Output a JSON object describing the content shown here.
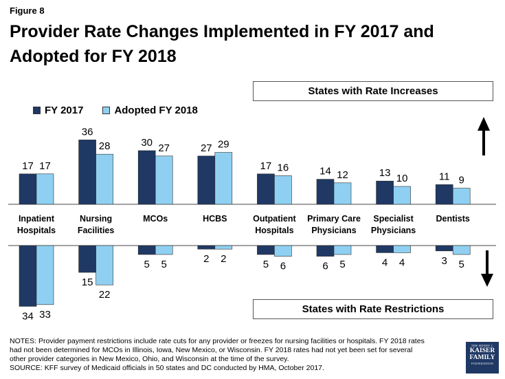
{
  "figure_label": "Figure 8",
  "title": "Provider Rate Changes Implemented in FY 2017 and Adopted for FY 2018",
  "increase_box": "States with Rate Increases",
  "restriction_box": "States with Rate Restrictions",
  "chart_data": {
    "type": "bar",
    "categories": [
      "Inpatient Hospitals",
      "Nursing Facilities",
      "MCOs",
      "HCBS",
      "Outpatient Hospitals",
      "Primary Care Physicians",
      "Specialist Physicians",
      "Dentists"
    ],
    "series": [
      {
        "name": "FY 2017",
        "color": "#1f3864",
        "increases": [
          17,
          36,
          30,
          27,
          17,
          14,
          13,
          11
        ],
        "restrictions": [
          34,
          15,
          5,
          2,
          5,
          6,
          4,
          3
        ]
      },
      {
        "name": "Adopted FY 2018",
        "color": "#8fd0f2",
        "increases": [
          17,
          28,
          27,
          29,
          16,
          12,
          10,
          9
        ],
        "restrictions": [
          33,
          22,
          5,
          2,
          6,
          5,
          4,
          5
        ]
      }
    ]
  },
  "notes": [
    "NOTES: Provider payment restrictions include rate cuts for any provider or freezes for nursing facilities or hospitals.  FY 2018 rates",
    "had not been determined for MCOs in Illinois, Iowa, New Mexico, or Wisconsin. FY 2018 rates had not yet been set for several",
    "other provider categories in New Mexico, Ohio, and Wisconsin at the time of the survey.",
    "SOURCE: KFF survey of Medicaid officials in 50 states and DC conducted by HMA, October 2017."
  ],
  "logo": {
    "line1": "THE HENRY J.",
    "line2": "KAISER",
    "line3": "FAMILY",
    "line4": "FOUNDATION"
  }
}
